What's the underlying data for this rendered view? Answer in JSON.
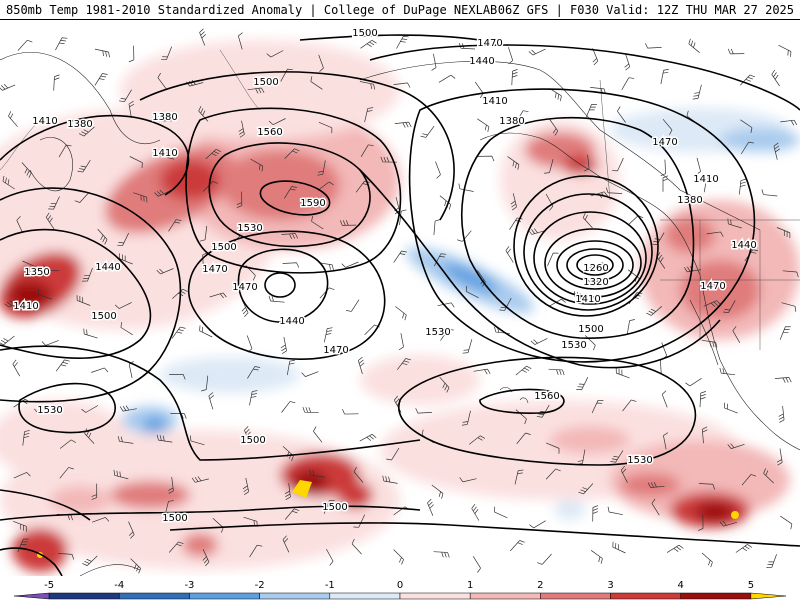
{
  "header": {
    "left": "850mb Temp 1981-2010 Standardized Anomaly | College of DuPage NEXLAB",
    "right": "06Z GFS | F030 Valid: 12Z THU MAR 27 2025"
  },
  "colors": {
    "background": "#ffffff",
    "contour": "#000000",
    "anomaly_scale": [
      {
        "from": -5.5,
        "to": -5,
        "color": "#7a4fb8"
      },
      {
        "from": -5,
        "to": -4,
        "color": "#1d3a80"
      },
      {
        "from": -4,
        "to": -3,
        "color": "#2f6fb8"
      },
      {
        "from": -3,
        "to": -2,
        "color": "#5d9fe0"
      },
      {
        "from": -2,
        "to": -1,
        "color": "#a9cbee"
      },
      {
        "from": -1,
        "to": 0,
        "color": "#dde9f6"
      },
      {
        "from": 0,
        "to": 1,
        "color": "#fbe0e0"
      },
      {
        "from": 1,
        "to": 2,
        "color": "#f3b8b8"
      },
      {
        "from": 2,
        "to": 3,
        "color": "#e07b7b"
      },
      {
        "from": 3,
        "to": 4,
        "color": "#cc3a3a"
      },
      {
        "from": 4,
        "to": 5,
        "color": "#9c0e0e"
      },
      {
        "from": 5,
        "to": 5.5,
        "color": "#ffd700"
      }
    ]
  },
  "colorbar": {
    "ticks": [
      "-5",
      "-4",
      "-3",
      "-2",
      "-1",
      "0",
      "1",
      "2",
      "3",
      "4",
      "5"
    ]
  },
  "height_labels": [
    "1500",
    "1470",
    "1440",
    "1410",
    "1380",
    "1500",
    "1380",
    "1410",
    "1560",
    "1590",
    "1530",
    "1500",
    "1470",
    "1440",
    "1470",
    "1530",
    "1260",
    "1320",
    "1410",
    "1500",
    "1530",
    "1560",
    "1530",
    "1500",
    "1500",
    "1500",
    "1530",
    "1380",
    "1470",
    "1410",
    "1440",
    "1470",
    "1350",
    "1410",
    "1500",
    "1440",
    "1380",
    "1410",
    "1470"
  ]
}
